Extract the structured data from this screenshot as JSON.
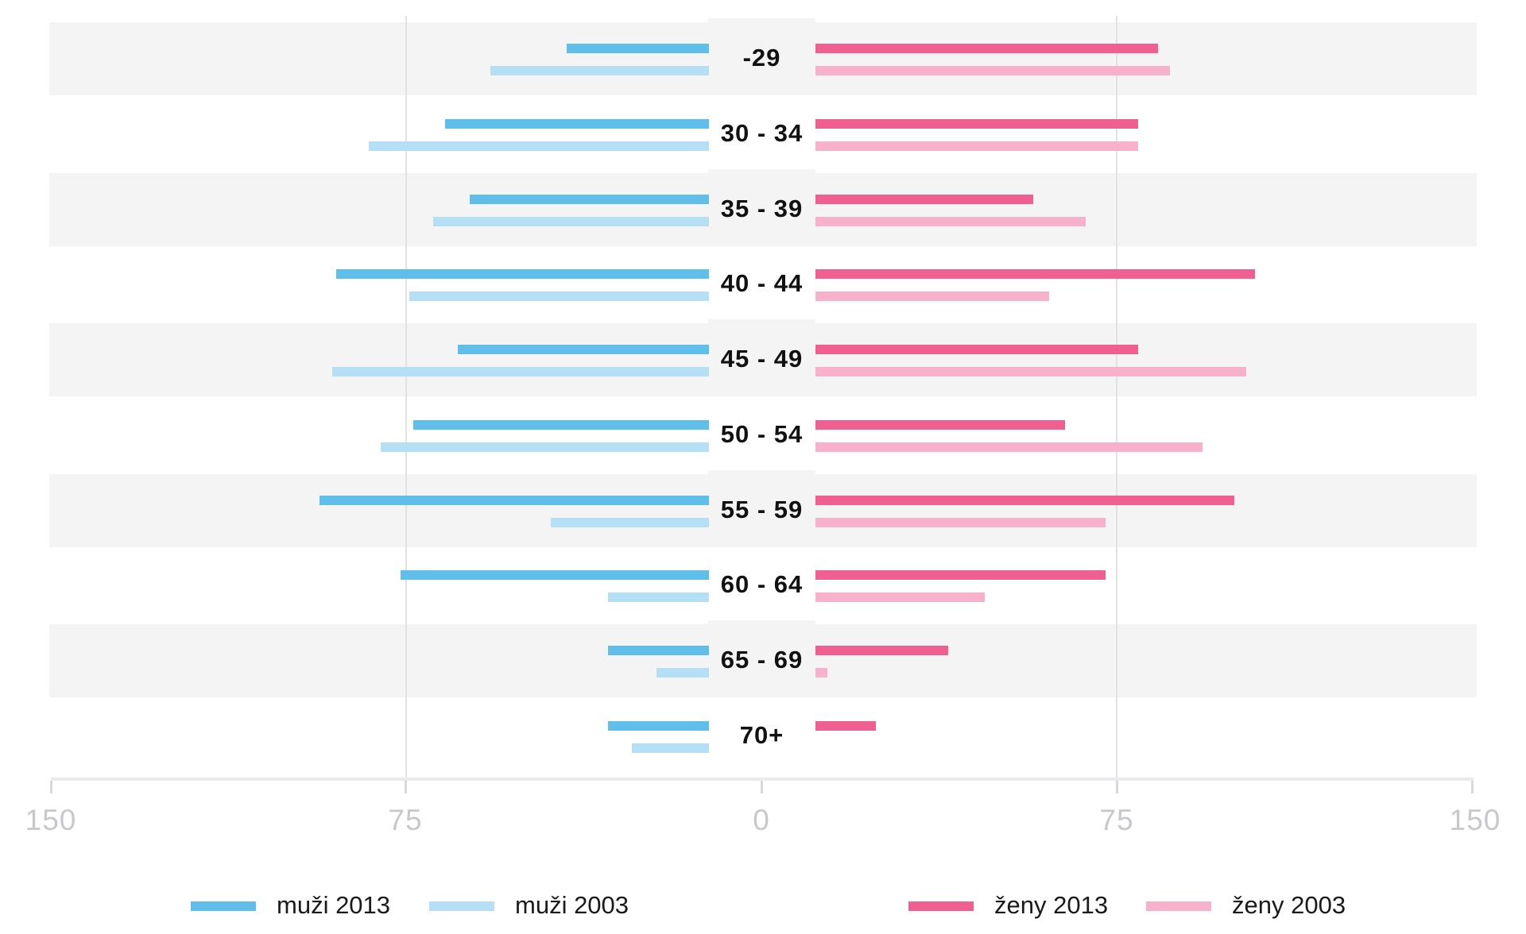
{
  "chart_data": {
    "type": "bar",
    "subtype": "population-pyramid-horizontal",
    "title": "",
    "xlabel": "",
    "ylabel": "",
    "categories": [
      "-29",
      "30 - 34",
      "35 - 39",
      "40 - 44",
      "45 - 49",
      "50 - 54",
      "55 - 59",
      "60 - 64",
      "65 - 69",
      "70+"
    ],
    "series": [
      {
        "name": "muži 2013",
        "side": "left",
        "color": "#5fbeea",
        "values": [
          35,
          65,
          59,
          92,
          62,
          73,
          96,
          76,
          25,
          25
        ]
      },
      {
        "name": "muži 2003",
        "side": "left",
        "color": "#b5dff4",
        "values": [
          54,
          84,
          68,
          74,
          93,
          81,
          39,
          25,
          13,
          19
        ]
      },
      {
        "name": "ženy 2013",
        "side": "right",
        "color": "#ef6091",
        "values": [
          85,
          80,
          54,
          109,
          80,
          62,
          104,
          72,
          33,
          15
        ]
      },
      {
        "name": "ženy 2003",
        "side": "right",
        "color": "#f8b1cb",
        "values": [
          88,
          80,
          67,
          58,
          107,
          96,
          72,
          42,
          3,
          0
        ]
      }
    ],
    "axis": {
      "tick_labels": [
        "150",
        "75",
        "0",
        "75",
        "150"
      ],
      "max_each_side": 150,
      "gridlines_at": [
        75
      ],
      "grid_on": true
    },
    "legend": {
      "position": "bottom",
      "items": [
        {
          "label": "muži 2013",
          "color": "#5fbeea"
        },
        {
          "label": "muži 2003",
          "color": "#b5dff4"
        },
        {
          "label": "ženy 2013",
          "color": "#ef6091"
        },
        {
          "label": "ženy 2003",
          "color": "#f8b1cb"
        }
      ]
    }
  },
  "colors": {
    "row_band": "#f4f4f4",
    "gridline": "#e2e2e6",
    "axis_line": "#eaeaee",
    "tick": "#d8d8dc",
    "tick_text": "#c8c8cc",
    "category_text": "#111111",
    "background": "#ffffff"
  }
}
